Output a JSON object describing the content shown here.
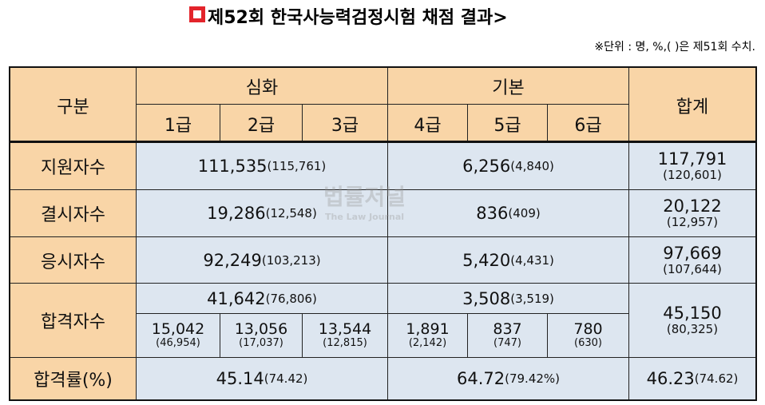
{
  "header": {
    "title": "제52회 한국사능력검정시험 채점 결과>",
    "note": "※단위 : 명, %,( )은 제51회 수치."
  },
  "table": {
    "columns": {
      "category": "구분",
      "advanced": "심화",
      "basic": "기본",
      "total": "합계",
      "grades": [
        "1급",
        "2급",
        "3급",
        "4급",
        "5급",
        "6급"
      ]
    },
    "rows": [
      {
        "label": "지원자수",
        "advanced": "111,535",
        "advanced_prev": "(115,761)",
        "basic": "6,256",
        "basic_prev": "(4,840)",
        "total": "117,791",
        "total_prev": "(120,601)"
      },
      {
        "label": "결시자수",
        "advanced": "19,286",
        "advanced_prev": "(12,548)",
        "basic": "836",
        "basic_prev": "(409)",
        "total": "20,122",
        "total_prev": "(12,957)"
      },
      {
        "label": "응시자수",
        "advanced": "92,249",
        "advanced_prev": "(103,213)",
        "basic": "5,420",
        "basic_prev": "(4,431)",
        "total": "97,669",
        "total_prev": "(107,644)"
      },
      {
        "label": "합격자수",
        "advanced": "41,642",
        "advanced_prev": "(76,806)",
        "basic": "3,508",
        "basic_prev": "(3,519)",
        "total": "45,150",
        "total_prev": "(80,325)",
        "grades": [
          [
            "15,042",
            "(46,954)"
          ],
          [
            "13,056",
            "(17,037)"
          ],
          [
            "13,544",
            "(12,815)"
          ],
          [
            "1,891",
            "(2,142)"
          ],
          [
            "837",
            "(747)"
          ],
          [
            "780",
            "(630)"
          ]
        ]
      },
      {
        "label": "합격률(%)",
        "advanced": "45.14",
        "advanced_prev": "(74.42)",
        "basic": "64.72",
        "basic_prev": "(79.42%)",
        "total": "46.23",
        "total_prev": "(74.62)"
      }
    ]
  },
  "watermark": {
    "name": "법률저널",
    "subtitle": "The Law Journal"
  }
}
